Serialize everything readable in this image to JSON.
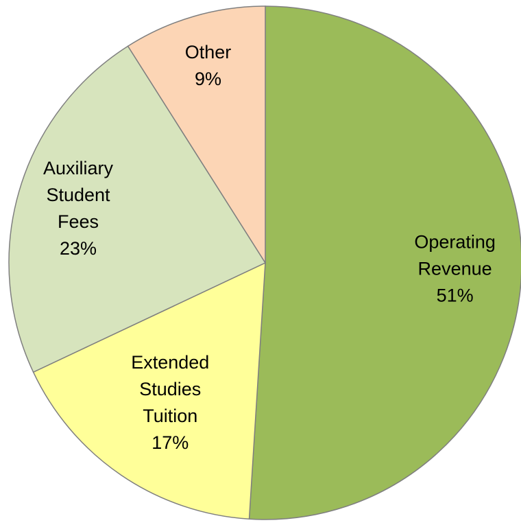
{
  "chart_data": {
    "type": "pie",
    "categories": [
      "Operating Revenue",
      "Extended Studies Tuition",
      "Auxiliary Student Fees",
      "Other"
    ],
    "values": [
      51,
      17,
      23,
      9
    ],
    "value_labels": [
      "51%",
      "17%",
      "23%",
      "9%"
    ],
    "colors": [
      "#9bbb59",
      "#ffff99",
      "#d7e4bd",
      "#fcd5b5"
    ]
  }
}
